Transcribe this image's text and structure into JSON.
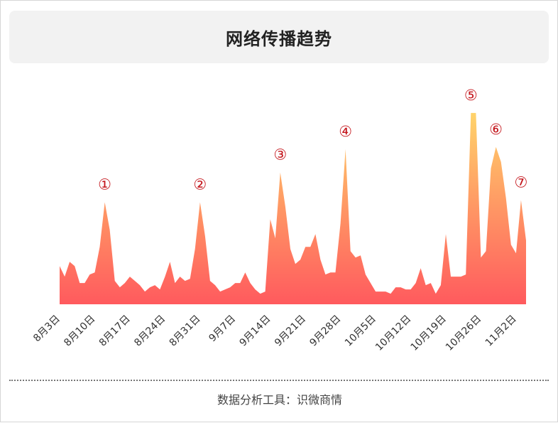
{
  "header": {
    "title": "网络传播趋势"
  },
  "footer": {
    "text": "数据分析工具：识微商情"
  },
  "colors": {
    "gradient_top": "#ffd36a",
    "gradient_bottom": "#ff5a5e",
    "marker": "#c4161c"
  },
  "chart_data": {
    "type": "area",
    "title": "网络传播趋势",
    "xlabel": "",
    "ylabel": "",
    "grid": false,
    "legend": "none",
    "tick_labels": [
      "8月3日",
      "8月10日",
      "8月17日",
      "8月24日",
      "8月31日",
      "9月7日",
      "9月14日",
      "9月21日",
      "9月28日",
      "10月5日",
      "10月12日",
      "10月19日",
      "10月26日",
      "11月2日"
    ],
    "x_start": "8月3日",
    "values": [
      18,
      13,
      20,
      18,
      10,
      10,
      14,
      15,
      27,
      48,
      35,
      11,
      8,
      10,
      13,
      11,
      9,
      6,
      8,
      9,
      7,
      13,
      20,
      10,
      13,
      11,
      12,
      26,
      48,
      32,
      11,
      9,
      6,
      7,
      8,
      10,
      10,
      15,
      10,
      7,
      5,
      6,
      40,
      31,
      62,
      46,
      26,
      19,
      21,
      27,
      27,
      33,
      21,
      14,
      15,
      15,
      38,
      73,
      25,
      22,
      23,
      14,
      10,
      6,
      6,
      6,
      5,
      8,
      8,
      7,
      7,
      10,
      17,
      9,
      10,
      5,
      9,
      33,
      13,
      13,
      13,
      14,
      90,
      90,
      22,
      25,
      64,
      74,
      67,
      50,
      28,
      24,
      49,
      30
    ],
    "ylim": [
      0,
      96
    ],
    "annotations": [
      {
        "label": "①",
        "index": 9
      },
      {
        "label": "②",
        "index": 28
      },
      {
        "label": "③",
        "index": 44
      },
      {
        "label": "④",
        "index": 57
      },
      {
        "label": "⑤",
        "index": 82
      },
      {
        "label": "⑥",
        "index": 87
      },
      {
        "label": "⑦",
        "index": 92
      }
    ]
  }
}
